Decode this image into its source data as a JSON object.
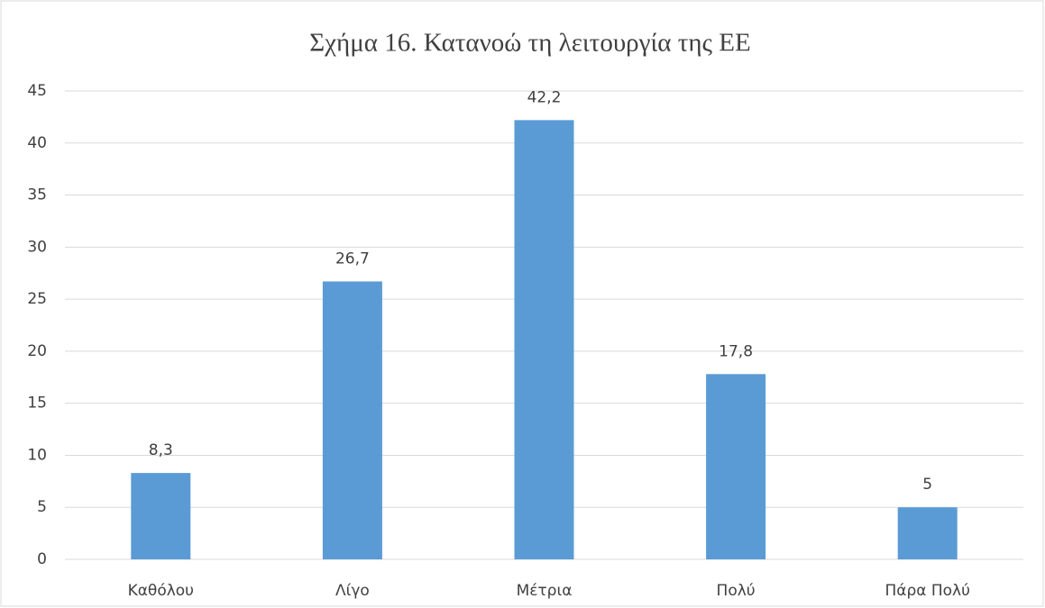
{
  "chart_data": {
    "type": "bar",
    "title": "Σχήμα 16. Κατανοώ τη λειτουργία της ΕΕ",
    "categories": [
      "Καθόλου",
      "Λίγο",
      "Μέτρια",
      "Πολύ",
      "Πάρα Πολύ"
    ],
    "values": [
      8.3,
      26.7,
      42.2,
      17.8,
      5
    ],
    "value_labels": [
      "8,3",
      "26,7",
      "42,2",
      "17,8",
      "5"
    ],
    "color": "#5b9bd5",
    "ylim": [
      0,
      45
    ],
    "yticks": [
      0,
      5,
      10,
      15,
      20,
      25,
      30,
      35,
      40,
      45
    ],
    "grid": true
  }
}
